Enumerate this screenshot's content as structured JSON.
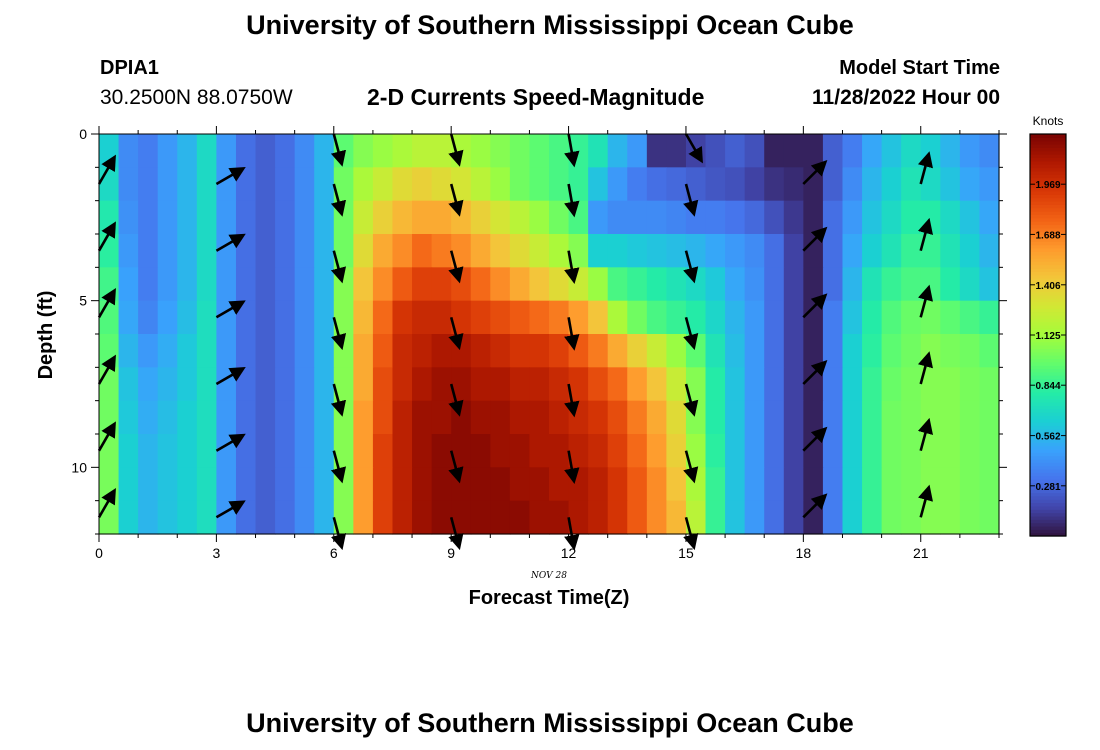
{
  "header": {
    "title": "University of Southern Mississippi Ocean Cube",
    "station_id": "DPIA1",
    "station_position": "30.2500N  88.0750W",
    "plot_title": "2-D Currents Speed-Magnitude",
    "model_start_label": "Model Start Time",
    "model_start_value": "11/28/2022 Hour 00"
  },
  "footer": {
    "title": "University of Southern Mississippi Ocean Cube"
  },
  "chart_data": {
    "type": "heatmap",
    "xlabel": "Forecast Time(Z)",
    "ylabel": "Depth (ft)",
    "date_label": "NOV 28",
    "x_range": [
      0,
      23
    ],
    "y_range": [
      0,
      12
    ],
    "y_inverted": true,
    "x_ticks": [
      0,
      3,
      6,
      9,
      12,
      15,
      18,
      21
    ],
    "y_ticks": [
      0,
      5,
      10
    ],
    "colorbar": {
      "label": "Knots",
      "range": [
        0,
        2.25
      ],
      "tick_labels": [
        "1.969",
        "1.688",
        "1.406",
        "1.125",
        "0.844",
        "0.562",
        "0.281"
      ],
      "tick_values": [
        1.969,
        1.688,
        1.406,
        1.125,
        0.844,
        0.562,
        0.281
      ],
      "colormap": [
        "#30123b",
        "#4145ab",
        "#4675ed",
        "#39a2fc",
        "#1bcfd4",
        "#24eca6",
        "#61fc6c",
        "#a4fc3b",
        "#d1e834",
        "#f3c63a",
        "#fe9b2d",
        "#f36315",
        "#d93806",
        "#b11901",
        "#7a0402"
      ]
    },
    "hours": [
      0,
      0.5,
      1,
      1.5,
      2,
      2.5,
      3,
      3.5,
      4,
      4.5,
      5,
      5.5,
      6,
      6.5,
      7,
      7.5,
      8,
      8.5,
      9,
      9.5,
      10,
      10.5,
      11,
      11.5,
      12,
      12.5,
      13,
      13.5,
      14,
      14.5,
      15,
      15.5,
      16,
      16.5,
      17,
      17.5,
      18,
      18.5,
      19,
      19.5,
      20,
      20.5,
      21,
      21.5,
      22,
      22.5
    ],
    "depths": [
      0.5,
      1.5,
      2.5,
      3.5,
      4.5,
      5.5,
      6.5,
      7.5,
      8.5,
      9.5,
      10.5,
      11.5
    ],
    "speed_knots": [
      [
        0.65,
        0.4,
        0.35,
        0.45,
        0.55,
        0.7,
        0.45,
        0.3,
        0.25,
        0.3,
        0.4,
        0.55,
        0.95,
        1.05,
        1.1,
        1.15,
        1.2,
        1.2,
        1.15,
        1.1,
        1.05,
        1.0,
        0.95,
        0.9,
        0.85,
        0.75,
        0.55,
        0.45,
        0.1,
        0.1,
        0.15,
        0.2,
        0.25,
        0.2,
        0.05,
        0.05,
        0.05,
        0.25,
        0.35,
        0.5,
        0.6,
        0.7,
        0.65,
        0.55,
        0.45,
        0.4
      ],
      [
        0.7,
        0.4,
        0.35,
        0.45,
        0.55,
        0.7,
        0.45,
        0.3,
        0.25,
        0.3,
        0.4,
        0.55,
        1.0,
        1.15,
        1.25,
        1.35,
        1.4,
        1.35,
        1.3,
        1.2,
        1.1,
        1.0,
        0.95,
        0.9,
        0.85,
        0.6,
        0.45,
        0.35,
        0.3,
        0.28,
        0.25,
        0.22,
        0.2,
        0.15,
        0.1,
        0.08,
        0.05,
        0.25,
        0.4,
        0.55,
        0.65,
        0.75,
        0.7,
        0.6,
        0.5,
        0.45
      ],
      [
        0.78,
        0.42,
        0.35,
        0.45,
        0.55,
        0.7,
        0.45,
        0.3,
        0.25,
        0.3,
        0.4,
        0.55,
        1.0,
        1.25,
        1.4,
        1.5,
        1.55,
        1.55,
        1.5,
        1.4,
        1.3,
        1.2,
        1.1,
        1.0,
        0.9,
        0.45,
        0.4,
        0.4,
        0.4,
        0.38,
        0.35,
        0.35,
        0.32,
        0.28,
        0.2,
        0.12,
        0.05,
        0.3,
        0.45,
        0.6,
        0.7,
        0.8,
        0.8,
        0.7,
        0.6,
        0.5
      ],
      [
        0.82,
        0.45,
        0.35,
        0.45,
        0.55,
        0.7,
        0.45,
        0.3,
        0.25,
        0.3,
        0.4,
        0.55,
        1.0,
        1.35,
        1.55,
        1.65,
        1.75,
        1.7,
        1.65,
        1.55,
        1.45,
        1.35,
        1.25,
        1.15,
        1.05,
        0.65,
        0.65,
        0.62,
        0.6,
        0.58,
        0.55,
        0.5,
        0.45,
        0.4,
        0.3,
        0.15,
        0.05,
        0.3,
        0.5,
        0.65,
        0.75,
        0.85,
        0.85,
        0.75,
        0.65,
        0.55
      ],
      [
        0.88,
        0.48,
        0.35,
        0.45,
        0.55,
        0.7,
        0.45,
        0.3,
        0.25,
        0.3,
        0.4,
        0.55,
        1.05,
        1.45,
        1.65,
        1.8,
        1.9,
        1.9,
        1.85,
        1.75,
        1.65,
        1.55,
        1.45,
        1.35,
        1.25,
        1.1,
        0.9,
        0.85,
        0.8,
        0.75,
        0.7,
        0.62,
        0.5,
        0.42,
        0.3,
        0.15,
        0.05,
        0.3,
        0.55,
        0.75,
        0.85,
        0.9,
        0.9,
        0.8,
        0.7,
        0.6
      ],
      [
        0.92,
        0.5,
        0.38,
        0.48,
        0.58,
        0.72,
        0.45,
        0.3,
        0.25,
        0.3,
        0.4,
        0.55,
        1.05,
        1.5,
        1.75,
        1.95,
        2.0,
        2.0,
        1.95,
        1.9,
        1.85,
        1.8,
        1.75,
        1.7,
        1.6,
        1.45,
        1.15,
        1.0,
        0.9,
        0.85,
        0.8,
        0.68,
        0.55,
        0.45,
        0.3,
        0.15,
        0.05,
        0.35,
        0.6,
        0.8,
        0.92,
        0.98,
        1.0,
        0.95,
        0.9,
        0.85
      ],
      [
        0.95,
        0.55,
        0.45,
        0.52,
        0.62,
        0.72,
        0.45,
        0.3,
        0.25,
        0.3,
        0.4,
        0.55,
        1.05,
        1.55,
        1.8,
        2.0,
        2.05,
        2.1,
        2.1,
        2.05,
        2.0,
        1.95,
        1.95,
        1.9,
        1.8,
        1.7,
        1.55,
        1.4,
        1.25,
        1.1,
        0.95,
        0.75,
        0.58,
        0.45,
        0.3,
        0.15,
        0.05,
        0.35,
        0.65,
        0.82,
        0.95,
        1.0,
        1.05,
        1.02,
        1.0,
        0.95
      ],
      [
        1.0,
        0.6,
        0.5,
        0.55,
        0.62,
        0.72,
        0.45,
        0.3,
        0.25,
        0.3,
        0.4,
        0.55,
        1.05,
        1.55,
        1.85,
        2.0,
        2.1,
        2.15,
        2.15,
        2.1,
        2.1,
        2.05,
        2.05,
        2.0,
        1.95,
        1.85,
        1.75,
        1.6,
        1.45,
        1.25,
        1.05,
        0.8,
        0.6,
        0.45,
        0.3,
        0.15,
        0.05,
        0.35,
        0.65,
        0.85,
        0.98,
        1.02,
        1.05,
        1.05,
        1.02,
        1.0
      ],
      [
        1.0,
        0.62,
        0.52,
        0.58,
        0.65,
        0.72,
        0.45,
        0.3,
        0.25,
        0.3,
        0.4,
        0.55,
        1.05,
        1.6,
        1.85,
        2.05,
        2.15,
        2.15,
        2.2,
        2.15,
        2.15,
        2.1,
        2.1,
        2.05,
        2.0,
        1.95,
        1.85,
        1.7,
        1.55,
        1.35,
        1.05,
        0.8,
        0.6,
        0.45,
        0.3,
        0.15,
        0.05,
        0.35,
        0.65,
        0.85,
        1.0,
        1.02,
        1.05,
        1.05,
        1.02,
        1.0
      ],
      [
        1.02,
        0.65,
        0.55,
        0.6,
        0.65,
        0.72,
        0.45,
        0.3,
        0.25,
        0.3,
        0.4,
        0.55,
        1.05,
        1.6,
        1.9,
        2.05,
        2.15,
        2.2,
        2.2,
        2.2,
        2.15,
        2.15,
        2.1,
        2.1,
        2.05,
        2.0,
        1.9,
        1.75,
        1.6,
        1.4,
        1.1,
        0.82,
        0.6,
        0.45,
        0.3,
        0.15,
        0.05,
        0.35,
        0.65,
        0.85,
        1.0,
        1.02,
        1.05,
        1.05,
        1.02,
        1.0
      ],
      [
        1.02,
        0.65,
        0.55,
        0.6,
        0.65,
        0.72,
        0.45,
        0.3,
        0.25,
        0.3,
        0.4,
        0.55,
        1.05,
        1.6,
        1.9,
        2.05,
        2.15,
        2.2,
        2.2,
        2.2,
        2.2,
        2.15,
        2.15,
        2.1,
        2.1,
        2.05,
        1.95,
        1.8,
        1.65,
        1.45,
        1.15,
        0.85,
        0.6,
        0.45,
        0.3,
        0.15,
        0.05,
        0.35,
        0.65,
        0.85,
        1.0,
        1.02,
        1.05,
        1.05,
        1.02,
        1.0
      ],
      [
        1.02,
        0.65,
        0.55,
        0.6,
        0.65,
        0.72,
        0.45,
        0.3,
        0.25,
        0.3,
        0.4,
        0.55,
        1.05,
        1.6,
        1.9,
        2.05,
        2.15,
        2.2,
        2.2,
        2.2,
        2.2,
        2.2,
        2.15,
        2.15,
        2.1,
        2.05,
        1.95,
        1.8,
        1.65,
        1.5,
        1.2,
        0.85,
        0.6,
        0.45,
        0.3,
        0.15,
        0.05,
        0.35,
        0.65,
        0.85,
        1.0,
        1.02,
        1.05,
        1.05,
        1.02,
        1.0
      ]
    ],
    "vectors": {
      "hours": [
        0,
        3,
        6,
        9,
        12,
        15,
        18,
        21
      ],
      "depths": [
        1.5,
        3.5,
        5.5,
        7.5,
        9.5,
        11.5
      ],
      "direction_deg": [
        30,
        60,
        165,
        165,
        170,
        165,
        45,
        15
      ],
      "surface_arrows": [
        {
          "hour": 6,
          "direction_deg": 165
        },
        {
          "hour": 9,
          "direction_deg": 165
        },
        {
          "hour": 12,
          "direction_deg": 170
        },
        {
          "hour": 15,
          "direction_deg": 150
        }
      ]
    }
  }
}
